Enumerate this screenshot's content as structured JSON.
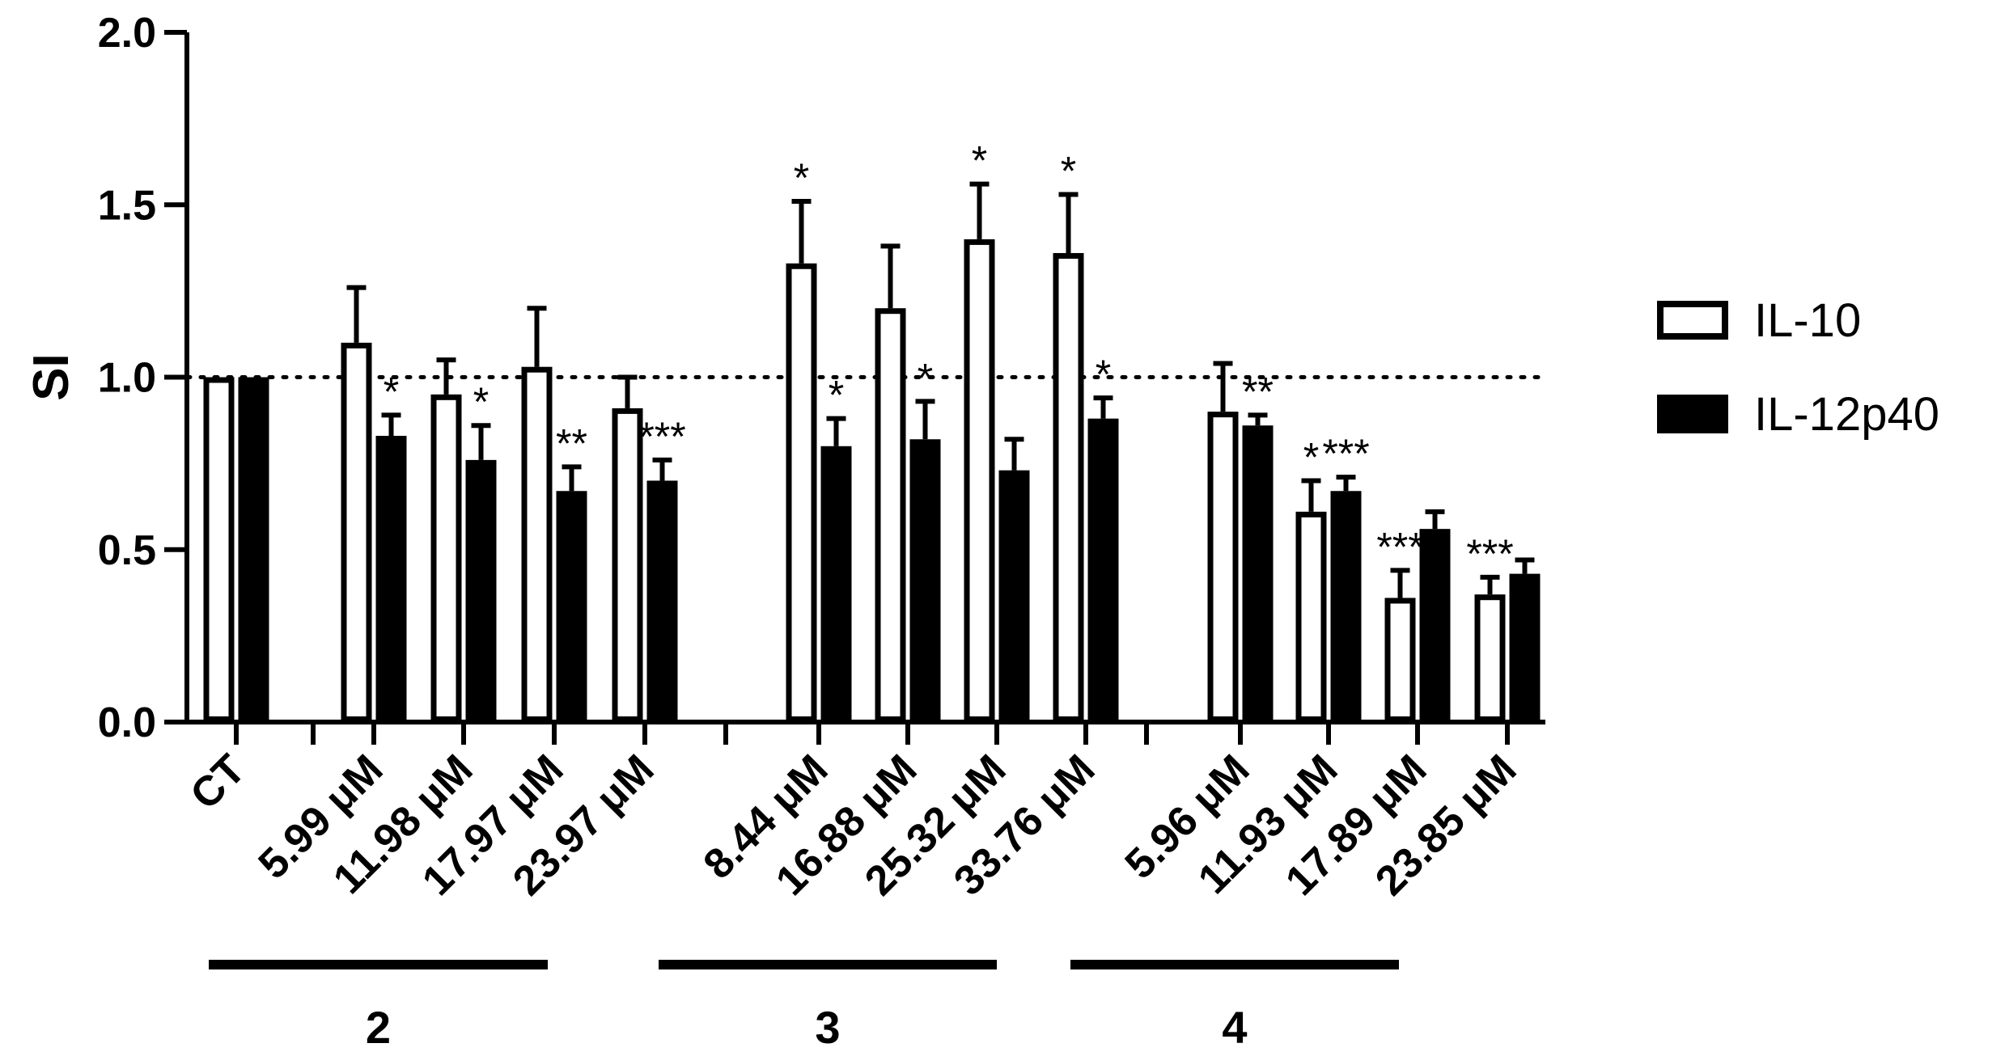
{
  "chart_data": {
    "type": "bar",
    "ylabel": "SI",
    "xlabel": "",
    "ylim": [
      0,
      2.0
    ],
    "yticks": [
      "0.0",
      "0.5",
      "1.0",
      "1.5",
      "2.0"
    ],
    "reference_line": 1.0,
    "categories": [
      "CT",
      "5.99 μM",
      "11.98 μM",
      "17.97 μM",
      "23.97 μM",
      "8.44 μM",
      "16.88 μM",
      "25.32 μM",
      "33.76 μM",
      "5.96 μM",
      "11.93 μM",
      "17.89 μM",
      "23.85 μM"
    ],
    "category_groups": [
      0,
      1,
      1,
      1,
      1,
      2,
      2,
      2,
      2,
      3,
      3,
      3,
      3
    ],
    "groups": [
      {
        "label": "",
        "categories": [
          0
        ]
      },
      {
        "label": "2",
        "categories": [
          1,
          2,
          3,
          4
        ]
      },
      {
        "label": "3",
        "categories": [
          5,
          6,
          7,
          8
        ]
      },
      {
        "label": "4",
        "categories": [
          9,
          10,
          11,
          12
        ]
      }
    ],
    "series": [
      {
        "name": "IL-10",
        "style": "open",
        "values": [
          1.0,
          1.1,
          0.95,
          1.03,
          0.91,
          1.33,
          1.2,
          1.4,
          1.36,
          0.9,
          0.61,
          0.36,
          0.37
        ],
        "errors": [
          0.0,
          0.16,
          0.1,
          0.17,
          0.09,
          0.18,
          0.18,
          0.16,
          0.17,
          0.14,
          0.09,
          0.08,
          0.05
        ],
        "stars": [
          "",
          "",
          "",
          "",
          "",
          "*",
          "",
          "*",
          "*",
          "",
          "*",
          "***",
          "***"
        ]
      },
      {
        "name": "IL-12p40",
        "style": "filled",
        "values": [
          1.0,
          0.83,
          0.76,
          0.67,
          0.7,
          0.8,
          0.82,
          0.73,
          0.88,
          0.86,
          0.67,
          0.56,
          0.43
        ],
        "errors": [
          0.0,
          0.06,
          0.1,
          0.07,
          0.06,
          0.08,
          0.11,
          0.09,
          0.06,
          0.03,
          0.04,
          0.05,
          0.04
        ],
        "stars": [
          "",
          "*",
          "*",
          "**",
          "***",
          "*",
          "*",
          "",
          "*",
          "**",
          "***",
          "",
          ""
        ]
      }
    ],
    "colors": {
      "bar_fill": "#000000",
      "bar_open": "#ffffff",
      "stroke": "#000000"
    },
    "legend": {
      "position": "right"
    }
  }
}
